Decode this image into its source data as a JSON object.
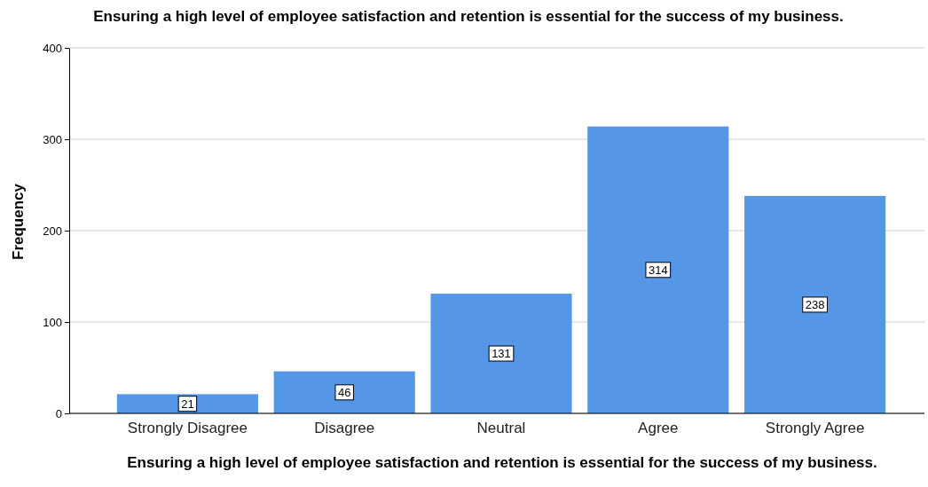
{
  "chart_data": {
    "type": "bar",
    "title": "Ensuring a high level of employee satisfaction and retention is essential for the success of my business.",
    "xlabel": "Ensuring a high level of employee satisfaction and retention is essential for the success of my business.",
    "ylabel": "Frequency",
    "categories": [
      "Strongly Disagree",
      "Disagree",
      "Neutral",
      "Agree",
      "Strongly Agree"
    ],
    "values": [
      21,
      46,
      131,
      314,
      238
    ],
    "color": "#5596e6",
    "ylim": [
      0,
      400
    ],
    "yticks": [
      0,
      100,
      200,
      300,
      400
    ],
    "grid": "y",
    "data_labels": true
  }
}
